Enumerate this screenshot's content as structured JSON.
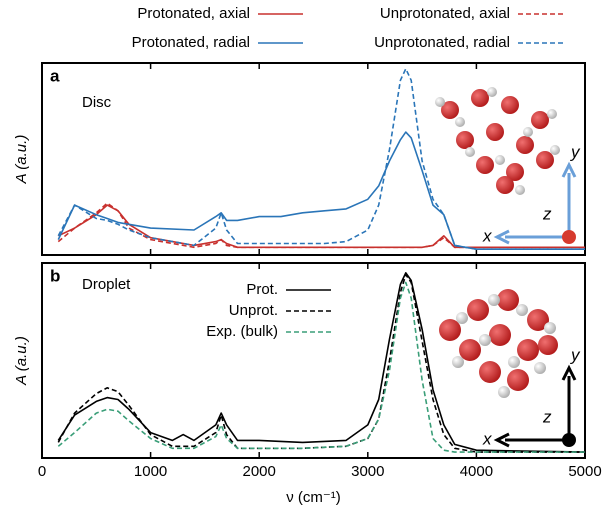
{
  "chart_data": [
    {
      "type": "line",
      "panel_label": "a",
      "annotation": "Disc",
      "ylabel": "A (a.u.)",
      "xlim": [
        0,
        5000
      ],
      "ylim": [
        0,
        1
      ],
      "x": [
        150,
        300,
        500,
        600,
        700,
        800,
        1000,
        1400,
        1600,
        1650,
        1700,
        1800,
        2000,
        2200,
        2400,
        2600,
        2800,
        3000,
        3100,
        3200,
        3300,
        3350,
        3400,
        3500,
        3600,
        3700,
        3800,
        4000,
        5000
      ],
      "series": [
        {
          "name": "Protonated, axial",
          "color": "#c8312e",
          "dashed": false,
          "values": [
            0.1,
            0.14,
            0.21,
            0.26,
            0.23,
            0.16,
            0.09,
            0.05,
            0.07,
            0.08,
            0.06,
            0.04,
            0.04,
            0.04,
            0.04,
            0.04,
            0.04,
            0.04,
            0.04,
            0.04,
            0.04,
            0.04,
            0.04,
            0.04,
            0.05,
            0.1,
            0.04,
            0.04,
            0.04
          ]
        },
        {
          "name": "Unprotonated, axial",
          "color": "#c8312e",
          "dashed": true,
          "values": [
            0.07,
            0.14,
            0.22,
            0.27,
            0.23,
            0.14,
            0.08,
            0.04,
            0.06,
            0.08,
            0.05,
            0.04,
            0.04,
            0.04,
            0.04,
            0.04,
            0.04,
            0.04,
            0.04,
            0.04,
            0.04,
            0.04,
            0.04,
            0.04,
            0.05,
            0.09,
            0.04,
            0.04,
            0.04
          ]
        },
        {
          "name": "Protonated, radial",
          "color": "#2a75b8",
          "dashed": false,
          "values": [
            0.08,
            0.26,
            0.21,
            0.19,
            0.17,
            0.16,
            0.14,
            0.13,
            0.2,
            0.22,
            0.18,
            0.18,
            0.2,
            0.2,
            0.22,
            0.23,
            0.24,
            0.29,
            0.36,
            0.49,
            0.6,
            0.64,
            0.61,
            0.44,
            0.26,
            0.21,
            0.05,
            0.03,
            0.03
          ]
        },
        {
          "name": "Unprotonated, radial",
          "color": "#2a75b8",
          "dashed": true,
          "values": [
            0.1,
            0.26,
            0.19,
            0.18,
            0.16,
            0.13,
            0.09,
            0.05,
            0.14,
            0.22,
            0.13,
            0.06,
            0.06,
            0.06,
            0.06,
            0.06,
            0.07,
            0.13,
            0.26,
            0.55,
            0.91,
            0.97,
            0.91,
            0.49,
            0.29,
            0.21,
            0.05,
            0.03,
            0.03
          ]
        }
      ],
      "axis_glyph": {
        "x": "x",
        "y": "y",
        "z": "z",
        "color": "#6a9fd8"
      }
    },
    {
      "type": "line",
      "panel_label": "b",
      "annotation": "Droplet",
      "ylabel": "A (a.u.)",
      "xlabel": "ν (cm⁻¹)",
      "xlim": [
        0,
        5000
      ],
      "ylim": [
        0,
        1
      ],
      "xticks": [
        0,
        1000,
        2000,
        3000,
        4000,
        5000
      ],
      "x": [
        150,
        300,
        500,
        600,
        700,
        800,
        1000,
        1200,
        1300,
        1400,
        1600,
        1650,
        1700,
        1800,
        2000,
        2400,
        2800,
        3000,
        3100,
        3200,
        3300,
        3350,
        3400,
        3500,
        3600,
        3700,
        3800,
        4000,
        5000
      ],
      "series": [
        {
          "name": "Prot.",
          "color": "#000000",
          "dashed": false,
          "values": [
            0.09,
            0.22,
            0.29,
            0.31,
            0.3,
            0.25,
            0.13,
            0.09,
            0.12,
            0.09,
            0.17,
            0.23,
            0.17,
            0.09,
            0.09,
            0.08,
            0.09,
            0.17,
            0.3,
            0.61,
            0.89,
            0.95,
            0.91,
            0.66,
            0.35,
            0.17,
            0.07,
            0.04,
            0.03
          ]
        },
        {
          "name": "Unprot.",
          "color": "#000000",
          "dashed": true,
          "values": [
            0.08,
            0.23,
            0.33,
            0.36,
            0.34,
            0.27,
            0.12,
            0.06,
            0.06,
            0.06,
            0.13,
            0.22,
            0.12,
            0.05,
            0.05,
            0.05,
            0.06,
            0.1,
            0.2,
            0.5,
            0.85,
            0.94,
            0.9,
            0.6,
            0.3,
            0.12,
            0.05,
            0.03,
            0.03
          ]
        },
        {
          "name": "Exp. (bulk)",
          "color": "#3a9e78",
          "dashed": true,
          "values": [
            0.06,
            0.13,
            0.23,
            0.25,
            0.24,
            0.19,
            0.1,
            0.05,
            0.05,
            0.05,
            0.11,
            0.17,
            0.1,
            0.05,
            0.05,
            0.05,
            0.06,
            0.1,
            0.2,
            0.45,
            0.82,
            0.9,
            0.82,
            0.4,
            0.1,
            0.04,
            0.03,
            0.03,
            0.03
          ]
        }
      ],
      "axis_glyph": {
        "x": "x",
        "y": "y",
        "z": "z",
        "color": "#000000"
      }
    }
  ]
}
